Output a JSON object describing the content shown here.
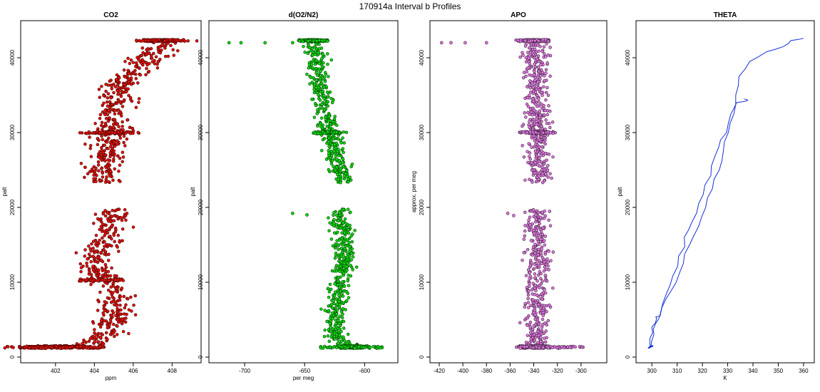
{
  "figure_title": "170914a   Interval b Profiles",
  "chart_data": [
    {
      "type": "scatter",
      "title": "CO2",
      "xlabel": "ppm",
      "ylabel": "palt",
      "xlim": [
        400.5,
        409.2
      ],
      "ylim": [
        0,
        44000
      ],
      "xticks": [
        402,
        404,
        406,
        408
      ],
      "yticks": [
        0,
        10000,
        20000,
        30000,
        40000
      ],
      "color": "#e8120c",
      "profile": [
        [
          1300,
          401.0
        ],
        [
          1500,
          403.6
        ],
        [
          3000,
          404.6
        ],
        [
          5000,
          405.0
        ],
        [
          8000,
          405.2
        ],
        [
          10500,
          404.6
        ],
        [
          12500,
          403.9
        ],
        [
          15000,
          404.6
        ],
        [
          19500,
          404.9
        ],
        [
          23500,
          404.3
        ],
        [
          26000,
          404.5
        ],
        [
          30000,
          404.8
        ],
        [
          34000,
          405.0
        ],
        [
          37000,
          405.5
        ],
        [
          39000,
          406.5
        ],
        [
          41000,
          407.2
        ],
        [
          42300,
          407.5
        ]
      ],
      "spread": 0.65
    },
    {
      "type": "scatter",
      "title": "d(O2/N2)",
      "xlabel": "per meg",
      "ylabel": "palt",
      "xlim": [
        -725,
        -577
      ],
      "ylim": [
        0,
        44000
      ],
      "xticks": [
        -700,
        -650,
        -600
      ],
      "yticks": [
        0,
        10000,
        20000,
        30000,
        40000
      ],
      "color": "#11dd11",
      "profile": [
        [
          1300,
          -610
        ],
        [
          2500,
          -622
        ],
        [
          5000,
          -626
        ],
        [
          8000,
          -622
        ],
        [
          10500,
          -620
        ],
        [
          13000,
          -617
        ],
        [
          16000,
          -618
        ],
        [
          19500,
          -620
        ],
        [
          23500,
          -617
        ],
        [
          27000,
          -625
        ],
        [
          30000,
          -630
        ],
        [
          34000,
          -635
        ],
        [
          37000,
          -637
        ],
        [
          40000,
          -640
        ],
        [
          42300,
          -642
        ]
      ],
      "spread": 6
    },
    {
      "type": "scatter",
      "title": "APO",
      "xlabel": "",
      "ylabel": "approx. per meg",
      "xlim": [
        -423,
        -283
      ],
      "ylim": [
        0,
        44000
      ],
      "xticks": [
        -420,
        -400,
        -380,
        -360,
        -340,
        -320,
        -300
      ],
      "yticks": [
        0,
        10000,
        20000,
        30000,
        40000
      ],
      "color": "#e27ae2",
      "profile": [
        [
          1300,
          -338
        ],
        [
          5000,
          -338
        ],
        [
          10000,
          -336
        ],
        [
          15000,
          -337
        ],
        [
          19500,
          -337
        ],
        [
          23500,
          -336
        ],
        [
          27000,
          -337
        ],
        [
          30000,
          -337
        ],
        [
          34000,
          -337
        ],
        [
          38000,
          -338
        ],
        [
          42300,
          -340
        ]
      ],
      "spread": 7
    },
    {
      "type": "line",
      "title": "THETA",
      "xlabel": "K",
      "ylabel": "palt",
      "xlim": [
        296,
        362
      ],
      "ylim": [
        0,
        44000
      ],
      "xticks": [
        300,
        310,
        320,
        330,
        340,
        350,
        360
      ],
      "yticks": [
        0,
        10000,
        20000,
        30000,
        40000
      ],
      "color": "#1432d8",
      "series": [
        {
          "points": [
            [
              299.5,
              1300
            ],
            [
              299.8,
              2500
            ],
            [
              300.5,
              4000
            ],
            [
              301.5,
              5200
            ],
            [
              303,
              5500
            ],
            [
              306,
              7800
            ],
            [
              309,
              10000
            ],
            [
              312,
              12500
            ],
            [
              315,
              15000
            ],
            [
              318,
              17500
            ],
            [
              321,
              20000
            ],
            [
              323.5,
              22500
            ],
            [
              326,
              25000
            ],
            [
              328,
              27500
            ],
            [
              330,
              30000
            ],
            [
              331.8,
              32500
            ],
            [
              333.2,
              35000
            ],
            [
              335,
              37500
            ],
            [
              338,
              39500
            ],
            [
              345,
              40800
            ],
            [
              352,
              41500
            ],
            [
              355,
              42300
            ],
            [
              360,
              42600
            ]
          ]
        },
        {
          "points": [
            [
              299.6,
              1300
            ],
            [
              300.2,
              3000
            ],
            [
              301.2,
              4500
            ],
            [
              303,
              5800
            ],
            [
              305.5,
              8500
            ],
            [
              308,
              10800
            ],
            [
              311,
              13500
            ],
            [
              313.5,
              16000
            ],
            [
              316,
              18000
            ],
            [
              318.5,
              20500
            ],
            [
              321.5,
              23000
            ],
            [
              324,
              25500
            ],
            [
              326.5,
              28000
            ],
            [
              329,
              30000
            ],
            [
              331.5,
              32500
            ],
            [
              334,
              34000
            ],
            [
              338,
              34300
            ],
            [
              336.5,
              34500
            ]
          ]
        }
      ]
    }
  ]
}
